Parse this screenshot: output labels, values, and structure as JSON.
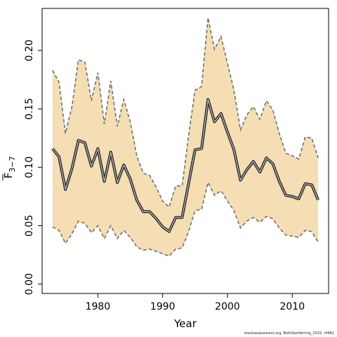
{
  "chart_data": {
    "type": "area",
    "xlabel": "Year",
    "ylabel_main": "F",
    "ylabel_sub": "3−7",
    "xlim": [
      1971.4,
      2015.6
    ],
    "ylim": [
      -0.008,
      0.236
    ],
    "xticks": [
      1980,
      1990,
      2000,
      2010
    ],
    "xtick_labels": [
      "1980",
      "1990",
      "2000",
      "2010"
    ],
    "yticks": [
      0.0,
      0.05,
      0.1,
      0.15,
      0.2
    ],
    "ytick_labels": [
      "0.00",
      "0.05",
      "0.10",
      "0.15",
      "0.20"
    ],
    "grid": false,
    "legend": "none",
    "colors": {
      "band": "#f5deb3",
      "line": "#2b2b2b",
      "bound": "#707070"
    },
    "x": [
      1973,
      1974,
      1975,
      1976,
      1977,
      1978,
      1979,
      1980,
      1981,
      1982,
      1983,
      1984,
      1985,
      1986,
      1987,
      1988,
      1989,
      1990,
      1991,
      1992,
      1993,
      1994,
      1995,
      1996,
      1997,
      1998,
      1999,
      2000,
      2001,
      2002,
      2003,
      2004,
      2005,
      2006,
      2007,
      2008,
      2009,
      2010,
      2011,
      2012,
      2013,
      2014
    ],
    "series": [
      {
        "role": "estimate",
        "values": [
          0.116,
          0.109,
          0.081,
          0.099,
          0.123,
          0.121,
          0.101,
          0.116,
          0.088,
          0.113,
          0.087,
          0.102,
          0.09,
          0.072,
          0.062,
          0.062,
          0.056,
          0.049,
          0.045,
          0.057,
          0.057,
          0.086,
          0.115,
          0.116,
          0.158,
          0.139,
          0.146,
          0.13,
          0.115,
          0.089,
          0.098,
          0.105,
          0.096,
          0.108,
          0.103,
          0.088,
          0.076,
          0.075,
          0.073,
          0.086,
          0.085,
          0.072
        ]
      },
      {
        "role": "upper",
        "values": [
          0.183,
          0.173,
          0.129,
          0.152,
          0.192,
          0.19,
          0.157,
          0.181,
          0.137,
          0.174,
          0.135,
          0.158,
          0.139,
          0.11,
          0.095,
          0.093,
          0.083,
          0.071,
          0.066,
          0.084,
          0.084,
          0.127,
          0.166,
          0.169,
          0.228,
          0.201,
          0.212,
          0.189,
          0.166,
          0.132,
          0.145,
          0.152,
          0.141,
          0.157,
          0.149,
          0.129,
          0.112,
          0.11,
          0.107,
          0.126,
          0.125,
          0.108
        ]
      },
      {
        "role": "lower",
        "values": [
          0.049,
          0.046,
          0.035,
          0.043,
          0.054,
          0.052,
          0.044,
          0.05,
          0.039,
          0.05,
          0.039,
          0.046,
          0.04,
          0.032,
          0.029,
          0.03,
          0.028,
          0.026,
          0.024,
          0.03,
          0.031,
          0.045,
          0.063,
          0.064,
          0.087,
          0.076,
          0.08,
          0.071,
          0.063,
          0.048,
          0.054,
          0.057,
          0.053,
          0.058,
          0.056,
          0.048,
          0.042,
          0.041,
          0.04,
          0.046,
          0.045,
          0.036
        ]
      }
    ]
  },
  "footer": {
    "credit": "stockassessment.org, BothSexHerring_2015, r4961"
  }
}
